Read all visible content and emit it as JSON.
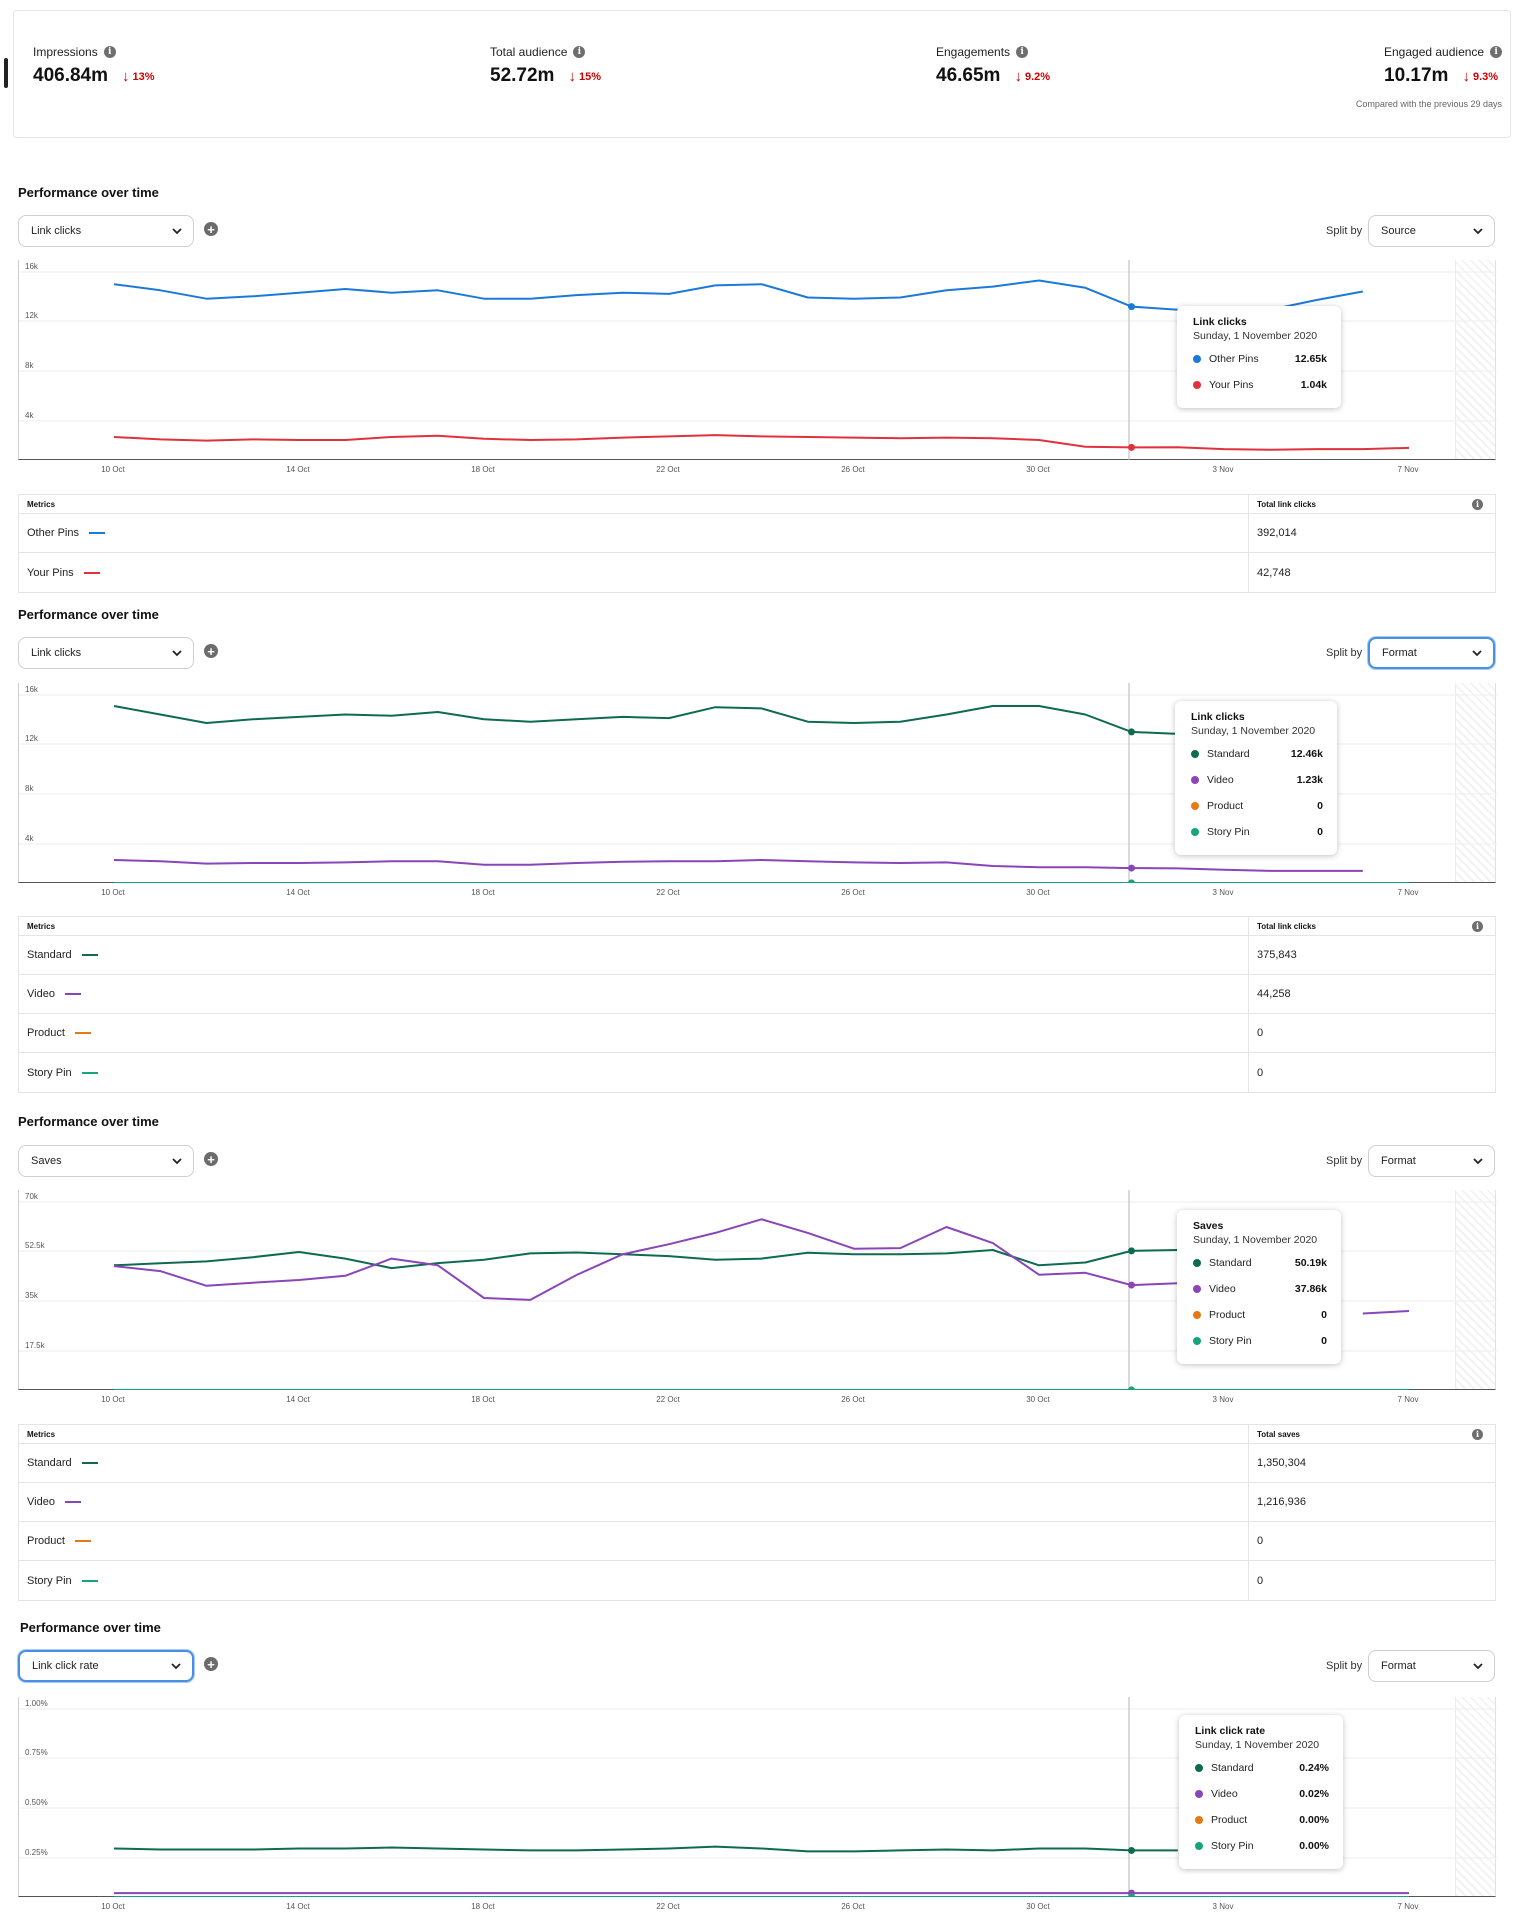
{
  "kpis": {
    "items": [
      {
        "label": "Impressions",
        "value": "406.84m",
        "change": "13%"
      },
      {
        "label": "Total audience",
        "value": "52.72m",
        "change": "15%"
      },
      {
        "label": "Engagements",
        "value": "46.65m",
        "change": "9.2%"
      },
      {
        "label": "Engaged audience",
        "value": "10.17m",
        "change": "9.3%"
      }
    ],
    "compare_note": "Compared with the previous 29 days"
  },
  "colors": {
    "other_pins": "#1a7ad9",
    "your_pins": "#e0323c",
    "standard": "#0e6b4f",
    "video": "#8a45b8",
    "product": "#e57a12",
    "story_pin": "#14a57c",
    "negative": "#cc0000",
    "focus": "#4a90e2"
  },
  "icons": [
    "info-icon",
    "arrow-down-icon",
    "chevron-down-icon",
    "add-icon"
  ],
  "x_ticks": [
    "10 Oct",
    "14 Oct",
    "18 Oct",
    "22 Oct",
    "26 Oct",
    "30 Oct",
    "3 Nov",
    "7 Nov"
  ],
  "sections": [
    {
      "title": "Performance over time",
      "metric_dropdown": "Link clicks",
      "split_label": "Split by",
      "split_dropdown": "Source",
      "y_ticks": [
        "16k",
        "12k",
        "8k",
        "4k"
      ],
      "tooltip": {
        "title": "Link clicks",
        "date": "Sunday, 1 November 2020",
        "rows": [
          {
            "name": "Other Pins",
            "value": "12.65k",
            "color": "#1a7ad9"
          },
          {
            "name": "Your Pins",
            "value": "1.04k",
            "color": "#e0323c"
          }
        ]
      },
      "table": {
        "col1": "Metrics",
        "col2": "Total link clicks",
        "rows": [
          {
            "name": "Other Pins",
            "value": "392,014",
            "color": "#1a7ad9"
          },
          {
            "name": "Your Pins",
            "value": "42,748",
            "color": "#e0323c"
          }
        ]
      }
    },
    {
      "title": "Performance over time",
      "metric_dropdown": "Link clicks",
      "split_label": "Split by",
      "split_dropdown": "Format",
      "y_ticks": [
        "16k",
        "12k",
        "8k",
        "4k"
      ],
      "tooltip": {
        "title": "Link clicks",
        "date": "Sunday, 1 November 2020",
        "rows": [
          {
            "name": "Standard",
            "value": "12.46k",
            "color": "#0e6b4f"
          },
          {
            "name": "Video",
            "value": "1.23k",
            "color": "#8a45b8"
          },
          {
            "name": "Product",
            "value": "0",
            "color": "#e57a12"
          },
          {
            "name": "Story Pin",
            "value": "0",
            "color": "#14a57c"
          }
        ]
      },
      "table": {
        "col1": "Metrics",
        "col2": "Total link clicks",
        "rows": [
          {
            "name": "Standard",
            "value": "375,843",
            "color": "#0e6b4f"
          },
          {
            "name": "Video",
            "value": "44,258",
            "color": "#8a45b8"
          },
          {
            "name": "Product",
            "value": "0",
            "color": "#e57a12"
          },
          {
            "name": "Story Pin",
            "value": "0",
            "color": "#14a57c"
          }
        ]
      }
    },
    {
      "title": "Performance over time",
      "metric_dropdown": "Saves",
      "split_label": "Split by",
      "split_dropdown": "Format",
      "y_ticks": [
        "70k",
        "52.5k",
        "35k",
        "17.5k"
      ],
      "tooltip": {
        "title": "Saves",
        "date": "Sunday, 1 November 2020",
        "rows": [
          {
            "name": "Standard",
            "value": "50.19k",
            "color": "#0e6b4f"
          },
          {
            "name": "Video",
            "value": "37.86k",
            "color": "#8a45b8"
          },
          {
            "name": "Product",
            "value": "0",
            "color": "#e57a12"
          },
          {
            "name": "Story Pin",
            "value": "0",
            "color": "#14a57c"
          }
        ]
      },
      "table": {
        "col1": "Metrics",
        "col2": "Total saves",
        "rows": [
          {
            "name": "Standard",
            "value": "1,350,304",
            "color": "#0e6b4f"
          },
          {
            "name": "Video",
            "value": "1,216,936",
            "color": "#8a45b8"
          },
          {
            "name": "Product",
            "value": "0",
            "color": "#e57a12"
          },
          {
            "name": "Story Pin",
            "value": "0",
            "color": "#14a57c"
          }
        ]
      }
    },
    {
      "title": "Performance over time",
      "metric_dropdown": "Link click rate",
      "split_label": "Split by",
      "split_dropdown": "Format",
      "y_ticks": [
        "1.00%",
        "0.75%",
        "0.50%",
        "0.25%"
      ],
      "tooltip": {
        "title": "Link click rate",
        "date": "Sunday, 1 November 2020",
        "rows": [
          {
            "name": "Standard",
            "value": "0.24%",
            "color": "#0e6b4f"
          },
          {
            "name": "Video",
            "value": "0.02%",
            "color": "#8a45b8"
          },
          {
            "name": "Product",
            "value": "0.00%",
            "color": "#e57a12"
          },
          {
            "name": "Story Pin",
            "value": "0.00%",
            "color": "#14a57c"
          }
        ]
      }
    }
  ],
  "chart_data": [
    {
      "type": "line",
      "ylim": [
        0,
        16000
      ],
      "x": [
        "10 Oct",
        "11 Oct",
        "12 Oct",
        "13 Oct",
        "14 Oct",
        "15 Oct",
        "16 Oct",
        "17 Oct",
        "18 Oct",
        "19 Oct",
        "20 Oct",
        "21 Oct",
        "22 Oct",
        "23 Oct",
        "24 Oct",
        "25 Oct",
        "26 Oct",
        "27 Oct",
        "28 Oct",
        "29 Oct",
        "30 Oct",
        "31 Oct",
        "1 Nov",
        "2 Nov",
        "3 Nov",
        "4 Nov",
        "5 Nov",
        "6 Nov",
        "7 Nov"
      ],
      "series": [
        {
          "name": "Other Pins",
          "color": "#1a7ad9",
          "values": [
            14500,
            14000,
            13300,
            13500,
            13800,
            14100,
            13800,
            14000,
            13300,
            13300,
            13600,
            13800,
            13700,
            14400,
            14500,
            13400,
            13300,
            13400,
            14000,
            14300,
            14800,
            14200,
            12650,
            12400,
            12300,
            12400,
            13200,
            13900,
            null
          ]
        },
        {
          "name": "Your Pins",
          "color": "#e0323c",
          "values": [
            1900,
            1700,
            1600,
            1700,
            1650,
            1650,
            1900,
            2000,
            1750,
            1650,
            1700,
            1850,
            1950,
            2050,
            1950,
            1900,
            1850,
            1800,
            1850,
            1800,
            1650,
            1100,
            1040,
            1050,
            900,
            850,
            900,
            900,
            1000
          ]
        }
      ]
    },
    {
      "type": "line",
      "ylim": [
        0,
        16000
      ],
      "x": [
        "10 Oct",
        "11 Oct",
        "12 Oct",
        "13 Oct",
        "14 Oct",
        "15 Oct",
        "16 Oct",
        "17 Oct",
        "18 Oct",
        "19 Oct",
        "20 Oct",
        "21 Oct",
        "22 Oct",
        "23 Oct",
        "24 Oct",
        "25 Oct",
        "26 Oct",
        "27 Oct",
        "28 Oct",
        "29 Oct",
        "30 Oct",
        "31 Oct",
        "1 Nov",
        "2 Nov",
        "3 Nov",
        "4 Nov",
        "5 Nov",
        "6 Nov",
        "7 Nov"
      ],
      "series": [
        {
          "name": "Standard",
          "color": "#0e6b4f",
          "values": [
            14600,
            13900,
            13200,
            13500,
            13700,
            13900,
            13800,
            14100,
            13500,
            13300,
            13500,
            13700,
            13600,
            14500,
            14400,
            13300,
            13200,
            13300,
            13900,
            14600,
            14600,
            13900,
            12460,
            12300,
            null,
            null,
            null,
            null,
            13000
          ]
        },
        {
          "name": "Video",
          "color": "#8a45b8",
          "values": [
            1900,
            1800,
            1600,
            1650,
            1650,
            1700,
            1800,
            1800,
            1500,
            1500,
            1650,
            1750,
            1800,
            1800,
            1900,
            1800,
            1700,
            1650,
            1700,
            1400,
            1300,
            1300,
            1230,
            1200,
            1100,
            1000,
            1000,
            1000,
            null
          ]
        },
        {
          "name": "Product",
          "color": "#e57a12",
          "values": [
            0,
            0,
            0,
            0,
            0,
            0,
            0,
            0,
            0,
            0,
            0,
            0,
            0,
            0,
            0,
            0,
            0,
            0,
            0,
            0,
            0,
            0,
            0,
            0,
            0,
            0,
            0,
            0,
            0
          ]
        },
        {
          "name": "Story Pin",
          "color": "#14a57c",
          "values": [
            0,
            0,
            0,
            0,
            0,
            0,
            0,
            0,
            0,
            0,
            0,
            0,
            0,
            0,
            0,
            0,
            0,
            0,
            0,
            0,
            0,
            0,
            0,
            0,
            0,
            0,
            0,
            0,
            0
          ]
        }
      ]
    },
    {
      "type": "line",
      "ylim": [
        0,
        70000
      ],
      "x": [
        "10 Oct",
        "11 Oct",
        "12 Oct",
        "13 Oct",
        "14 Oct",
        "15 Oct",
        "16 Oct",
        "17 Oct",
        "18 Oct",
        "19 Oct",
        "20 Oct",
        "21 Oct",
        "22 Oct",
        "23 Oct",
        "24 Oct",
        "25 Oct",
        "26 Oct",
        "27 Oct",
        "28 Oct",
        "29 Oct",
        "30 Oct",
        "31 Oct",
        "1 Nov",
        "2 Nov",
        "3 Nov",
        "4 Nov",
        "5 Nov",
        "6 Nov",
        "7 Nov"
      ],
      "series": [
        {
          "name": "Standard",
          "color": "#0e6b4f",
          "values": [
            45000,
            45700,
            46400,
            47900,
            49800,
            47400,
            44000,
            45800,
            47000,
            49300,
            49600,
            49000,
            48300,
            47000,
            47400,
            49500,
            49000,
            49000,
            49300,
            50500,
            45000,
            46000,
            50190,
            50500,
            null,
            null,
            null,
            null,
            50500
          ]
        },
        {
          "name": "Video",
          "color": "#8a45b8",
          "values": [
            44700,
            42900,
            37600,
            38700,
            39700,
            41200,
            47400,
            45000,
            33200,
            32500,
            41500,
            49000,
            52600,
            56700,
            61600,
            56700,
            51000,
            51200,
            58800,
            53000,
            41600,
            42300,
            37860,
            38500,
            null,
            null,
            null,
            27600,
            28500
          ]
        },
        {
          "name": "Product",
          "color": "#e57a12",
          "values": [
            0,
            0,
            0,
            0,
            0,
            0,
            0,
            0,
            0,
            0,
            0,
            0,
            0,
            0,
            0,
            0,
            0,
            0,
            0,
            0,
            0,
            0,
            0,
            0,
            0,
            0,
            0,
            0,
            0
          ]
        },
        {
          "name": "Story Pin",
          "color": "#14a57c",
          "values": [
            0,
            0,
            0,
            0,
            0,
            0,
            0,
            0,
            0,
            0,
            0,
            0,
            0,
            0,
            0,
            0,
            0,
            0,
            0,
            0,
            0,
            0,
            0,
            0,
            0,
            0,
            0,
            0,
            0
          ]
        }
      ]
    },
    {
      "type": "line",
      "ylim": [
        0,
        1.0
      ],
      "x": [
        "10 Oct",
        "11 Oct",
        "12 Oct",
        "13 Oct",
        "14 Oct",
        "15 Oct",
        "16 Oct",
        "17 Oct",
        "18 Oct",
        "19 Oct",
        "20 Oct",
        "21 Oct",
        "22 Oct",
        "23 Oct",
        "24 Oct",
        "25 Oct",
        "26 Oct",
        "27 Oct",
        "28 Oct",
        "29 Oct",
        "30 Oct",
        "31 Oct",
        "1 Nov",
        "2 Nov",
        "3 Nov",
        "4 Nov",
        "5 Nov",
        "6 Nov",
        "7 Nov"
      ],
      "series": [
        {
          "name": "Standard",
          "color": "#0e6b4f",
          "values": [
            0.25,
            0.245,
            0.245,
            0.245,
            0.25,
            0.25,
            0.255,
            0.25,
            0.245,
            0.24,
            0.24,
            0.245,
            0.25,
            0.26,
            0.25,
            0.235,
            0.235,
            0.24,
            0.245,
            0.24,
            0.25,
            0.25,
            0.24,
            0.24,
            null,
            null,
            null,
            null,
            0.25
          ]
        },
        {
          "name": "Video",
          "color": "#8a45b8",
          "values": [
            0.02,
            0.02,
            0.02,
            0.02,
            0.02,
            0.02,
            0.02,
            0.02,
            0.02,
            0.02,
            0.02,
            0.02,
            0.02,
            0.02,
            0.02,
            0.02,
            0.02,
            0.02,
            0.02,
            0.02,
            0.02,
            0.02,
            0.02,
            0.02,
            0.02,
            0.02,
            0.02,
            0.02,
            0.02
          ]
        },
        {
          "name": "Product",
          "color": "#e57a12",
          "values": [
            0,
            0,
            0,
            0,
            0,
            0,
            0,
            0,
            0,
            0,
            0,
            0,
            0,
            0,
            0,
            0,
            0,
            0,
            0,
            0,
            0,
            0,
            0,
            0,
            0,
            0,
            0,
            0,
            0
          ]
        },
        {
          "name": "Story Pin",
          "color": "#14a57c",
          "values": [
            0,
            0,
            0,
            0,
            0,
            0,
            0,
            0,
            0,
            0,
            0,
            0,
            0,
            0,
            0,
            0,
            0,
            0,
            0,
            0,
            0,
            0,
            0,
            0,
            0,
            0,
            0,
            0,
            0
          ]
        }
      ]
    }
  ]
}
